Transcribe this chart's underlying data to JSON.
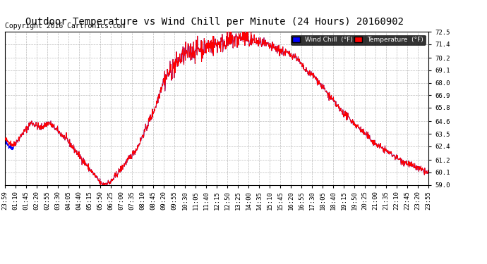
{
  "title": "Outdoor Temperature vs Wind Chill per Minute (24 Hours) 20160902",
  "copyright": "Copyright 2016 Cartronics.com",
  "ylim": [
    59.0,
    72.5
  ],
  "yticks": [
    59.0,
    60.1,
    61.2,
    62.4,
    63.5,
    64.6,
    65.8,
    66.9,
    68.0,
    69.1,
    70.2,
    71.4,
    72.5
  ],
  "xlabels": [
    "23:59",
    "01:10",
    "01:45",
    "02:20",
    "02:55",
    "03:30",
    "04:05",
    "04:40",
    "05:15",
    "05:50",
    "06:25",
    "07:00",
    "07:35",
    "08:10",
    "08:45",
    "09:20",
    "09:55",
    "10:30",
    "11:05",
    "11:40",
    "12:15",
    "12:50",
    "13:25",
    "14:00",
    "14:35",
    "15:10",
    "15:45",
    "16:20",
    "16:55",
    "17:30",
    "18:05",
    "18:40",
    "19:15",
    "19:50",
    "20:25",
    "21:00",
    "21:35",
    "22:10",
    "22:45",
    "23:20",
    "23:55"
  ],
  "temp_color": "#ff0000",
  "wind_color": "#0000ff",
  "background_color": "#ffffff",
  "grid_color": "#aaaaaa",
  "legend_wind_bg": "#0000ff",
  "legend_temp_bg": "#ff0000",
  "title_fontsize": 10,
  "copyright_fontsize": 7,
  "tick_fontsize": 6.5
}
